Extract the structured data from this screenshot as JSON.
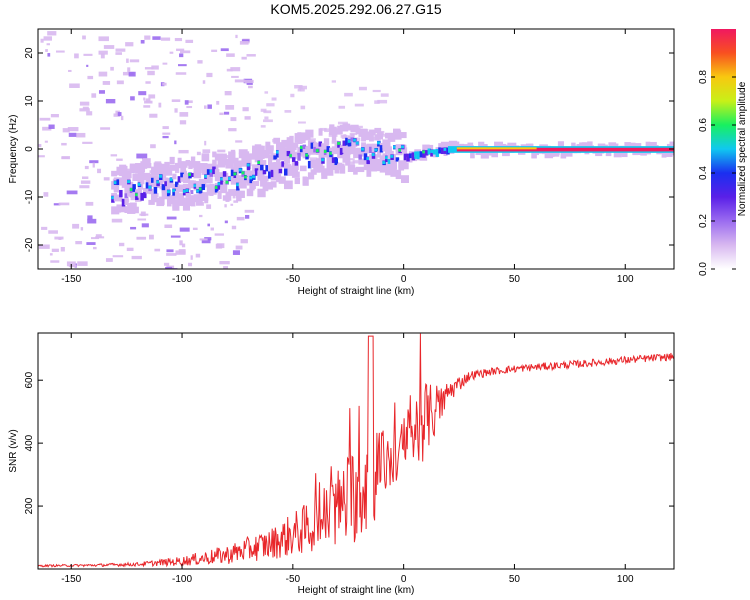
{
  "title": "KOM5.2025.292.06.27.G15",
  "colors": {
    "snr_line": "#e8262a",
    "axis": "#000000",
    "colormap": [
      "#ffffff",
      "#d8b8f0",
      "#9b6cf0",
      "#5a20e8",
      "#1a2ff0",
      "#10c8f0",
      "#18f060",
      "#c8f018",
      "#f8c810",
      "#f85020",
      "#f01860"
    ]
  },
  "chart_data": [
    {
      "type": "heatmap",
      "title": "KOM5.2025.292.06.27.G15",
      "xlabel": "Height of straight line (km)",
      "ylabel": "Frequency (Hz)",
      "xlim": [
        -165,
        122
      ],
      "ylim": [
        -25,
        25
      ],
      "xticks": [
        -150,
        -100,
        -50,
        0,
        50,
        100
      ],
      "yticks": [
        -20,
        -10,
        0,
        10,
        20
      ],
      "colorbar": {
        "label": "Normalized spectral amplitude",
        "range": [
          0,
          1
        ],
        "ticks": [
          0.0,
          0.2,
          0.4,
          0.6,
          0.8
        ]
      },
      "ridge": [
        {
          "x": -130,
          "y": -9
        },
        {
          "x": -115,
          "y": -7
        },
        {
          "x": -100,
          "y": -7
        },
        {
          "x": -85,
          "y": -6
        },
        {
          "x": -70,
          "y": -5
        },
        {
          "x": -60,
          "y": -3
        },
        {
          "x": -50,
          "y": -2
        },
        {
          "x": -40,
          "y": -1
        },
        {
          "x": -30,
          "y": 0
        },
        {
          "x": -20,
          "y": 0
        },
        {
          "x": -10,
          "y": -1
        },
        {
          "x": 0,
          "y": -1.5
        },
        {
          "x": 10,
          "y": -0.5
        },
        {
          "x": 20,
          "y": 0
        },
        {
          "x": 50,
          "y": 0
        },
        {
          "x": 122,
          "y": 0
        }
      ]
    },
    {
      "type": "line",
      "xlabel": "Height of straight line (km)",
      "ylabel": "SNR (v/v)",
      "xlim": [
        -165,
        122
      ],
      "ylim": [
        0,
        750
      ],
      "xticks": [
        -150,
        -100,
        -50,
        0,
        50,
        100
      ],
      "yticks": [
        200,
        400,
        600
      ],
      "series": [
        {
          "name": "SNR",
          "x": [
            -165,
            -140,
            -120,
            -100,
            -80,
            -60,
            -40,
            -25,
            -15,
            -10,
            -5,
            0,
            5,
            10,
            15,
            20,
            25,
            30,
            40,
            50,
            60,
            80,
            100,
            122
          ],
          "y": [
            10,
            12,
            15,
            25,
            45,
            80,
            140,
            220,
            300,
            330,
            340,
            380,
            430,
            480,
            500,
            560,
            590,
            615,
            628,
            636,
            642,
            652,
            664,
            675
          ],
          "noise": [
            3,
            4,
            6,
            15,
            30,
            50,
            90,
            150,
            200,
            120,
            80,
            100,
            140,
            120,
            70,
            40,
            25,
            15,
            12,
            12,
            12,
            12,
            12,
            12
          ]
        }
      ]
    }
  ]
}
